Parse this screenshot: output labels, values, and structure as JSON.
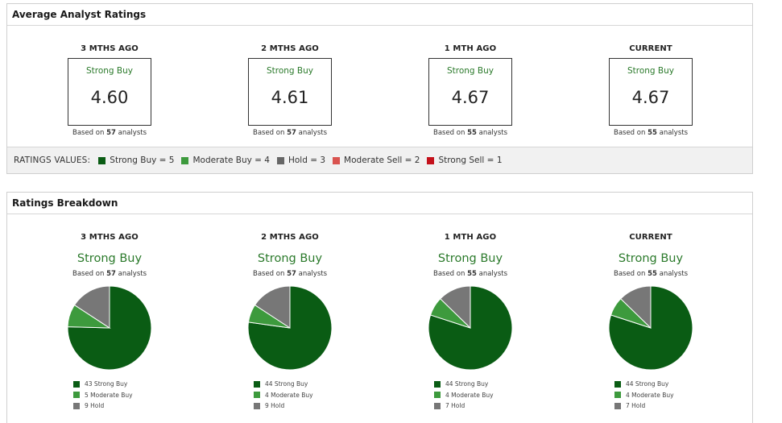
{
  "colors": {
    "strong_buy": "#0a5c14",
    "moderate_buy": "#3d9a3d",
    "hold": "#777777",
    "moderate_sell": "#d9534f",
    "strong_sell": "#c4111b"
  },
  "average": {
    "title": "Average Analyst Ratings",
    "columns": [
      {
        "heading": "3 MTHS AGO",
        "label": "Strong Buy",
        "value": "4.60",
        "based_prefix": "Based on",
        "count": "57",
        "based_suffix": "analysts"
      },
      {
        "heading": "2 MTHS AGO",
        "label": "Strong Buy",
        "value": "4.61",
        "based_prefix": "Based on",
        "count": "57",
        "based_suffix": "analysts"
      },
      {
        "heading": "1 MTH AGO",
        "label": "Strong Buy",
        "value": "4.67",
        "based_prefix": "Based on",
        "count": "55",
        "based_suffix": "analysts"
      },
      {
        "heading": "CURRENT",
        "label": "Strong Buy",
        "value": "4.67",
        "based_prefix": "Based on",
        "count": "55",
        "based_suffix": "analysts"
      }
    ],
    "legend": {
      "title": "RATINGS VALUES:",
      "items": [
        "Strong Buy = 5",
        "Moderate Buy = 4",
        "Hold = 3",
        "Moderate Sell = 2",
        "Strong Sell = 1"
      ]
    }
  },
  "breakdown": {
    "title": "Ratings Breakdown",
    "columns": [
      {
        "heading": "3 MTHS AGO",
        "label": "Strong Buy",
        "based_prefix": "Based on",
        "count": "57",
        "based_suffix": "analysts",
        "legend": [
          "43 Strong Buy",
          "5 Moderate Buy",
          "9 Hold"
        ]
      },
      {
        "heading": "2 MTHS AGO",
        "label": "Strong Buy",
        "based_prefix": "Based on",
        "count": "57",
        "based_suffix": "analysts",
        "legend": [
          "44 Strong Buy",
          "4 Moderate Buy",
          "9 Hold"
        ]
      },
      {
        "heading": "1 MTH AGO",
        "label": "Strong Buy",
        "based_prefix": "Based on",
        "count": "55",
        "based_suffix": "analysts",
        "legend": [
          "44 Strong Buy",
          "4 Moderate Buy",
          "7 Hold"
        ]
      },
      {
        "heading": "CURRENT",
        "label": "Strong Buy",
        "based_prefix": "Based on",
        "count": "55",
        "based_suffix": "analysts",
        "legend": [
          "44 Strong Buy",
          "4 Moderate Buy",
          "7 Hold"
        ]
      }
    ]
  },
  "chart_data": [
    {
      "type": "pie",
      "categories": [
        "Strong Buy",
        "Moderate Buy",
        "Hold"
      ],
      "values": [
        43,
        5,
        9
      ]
    },
    {
      "type": "pie",
      "categories": [
        "Strong Buy",
        "Moderate Buy",
        "Hold"
      ],
      "values": [
        44,
        4,
        9
      ]
    },
    {
      "type": "pie",
      "categories": [
        "Strong Buy",
        "Moderate Buy",
        "Hold"
      ],
      "values": [
        44,
        4,
        7
      ]
    },
    {
      "type": "pie",
      "categories": [
        "Strong Buy",
        "Moderate Buy",
        "Hold"
      ],
      "values": [
        44,
        4,
        7
      ]
    }
  ]
}
